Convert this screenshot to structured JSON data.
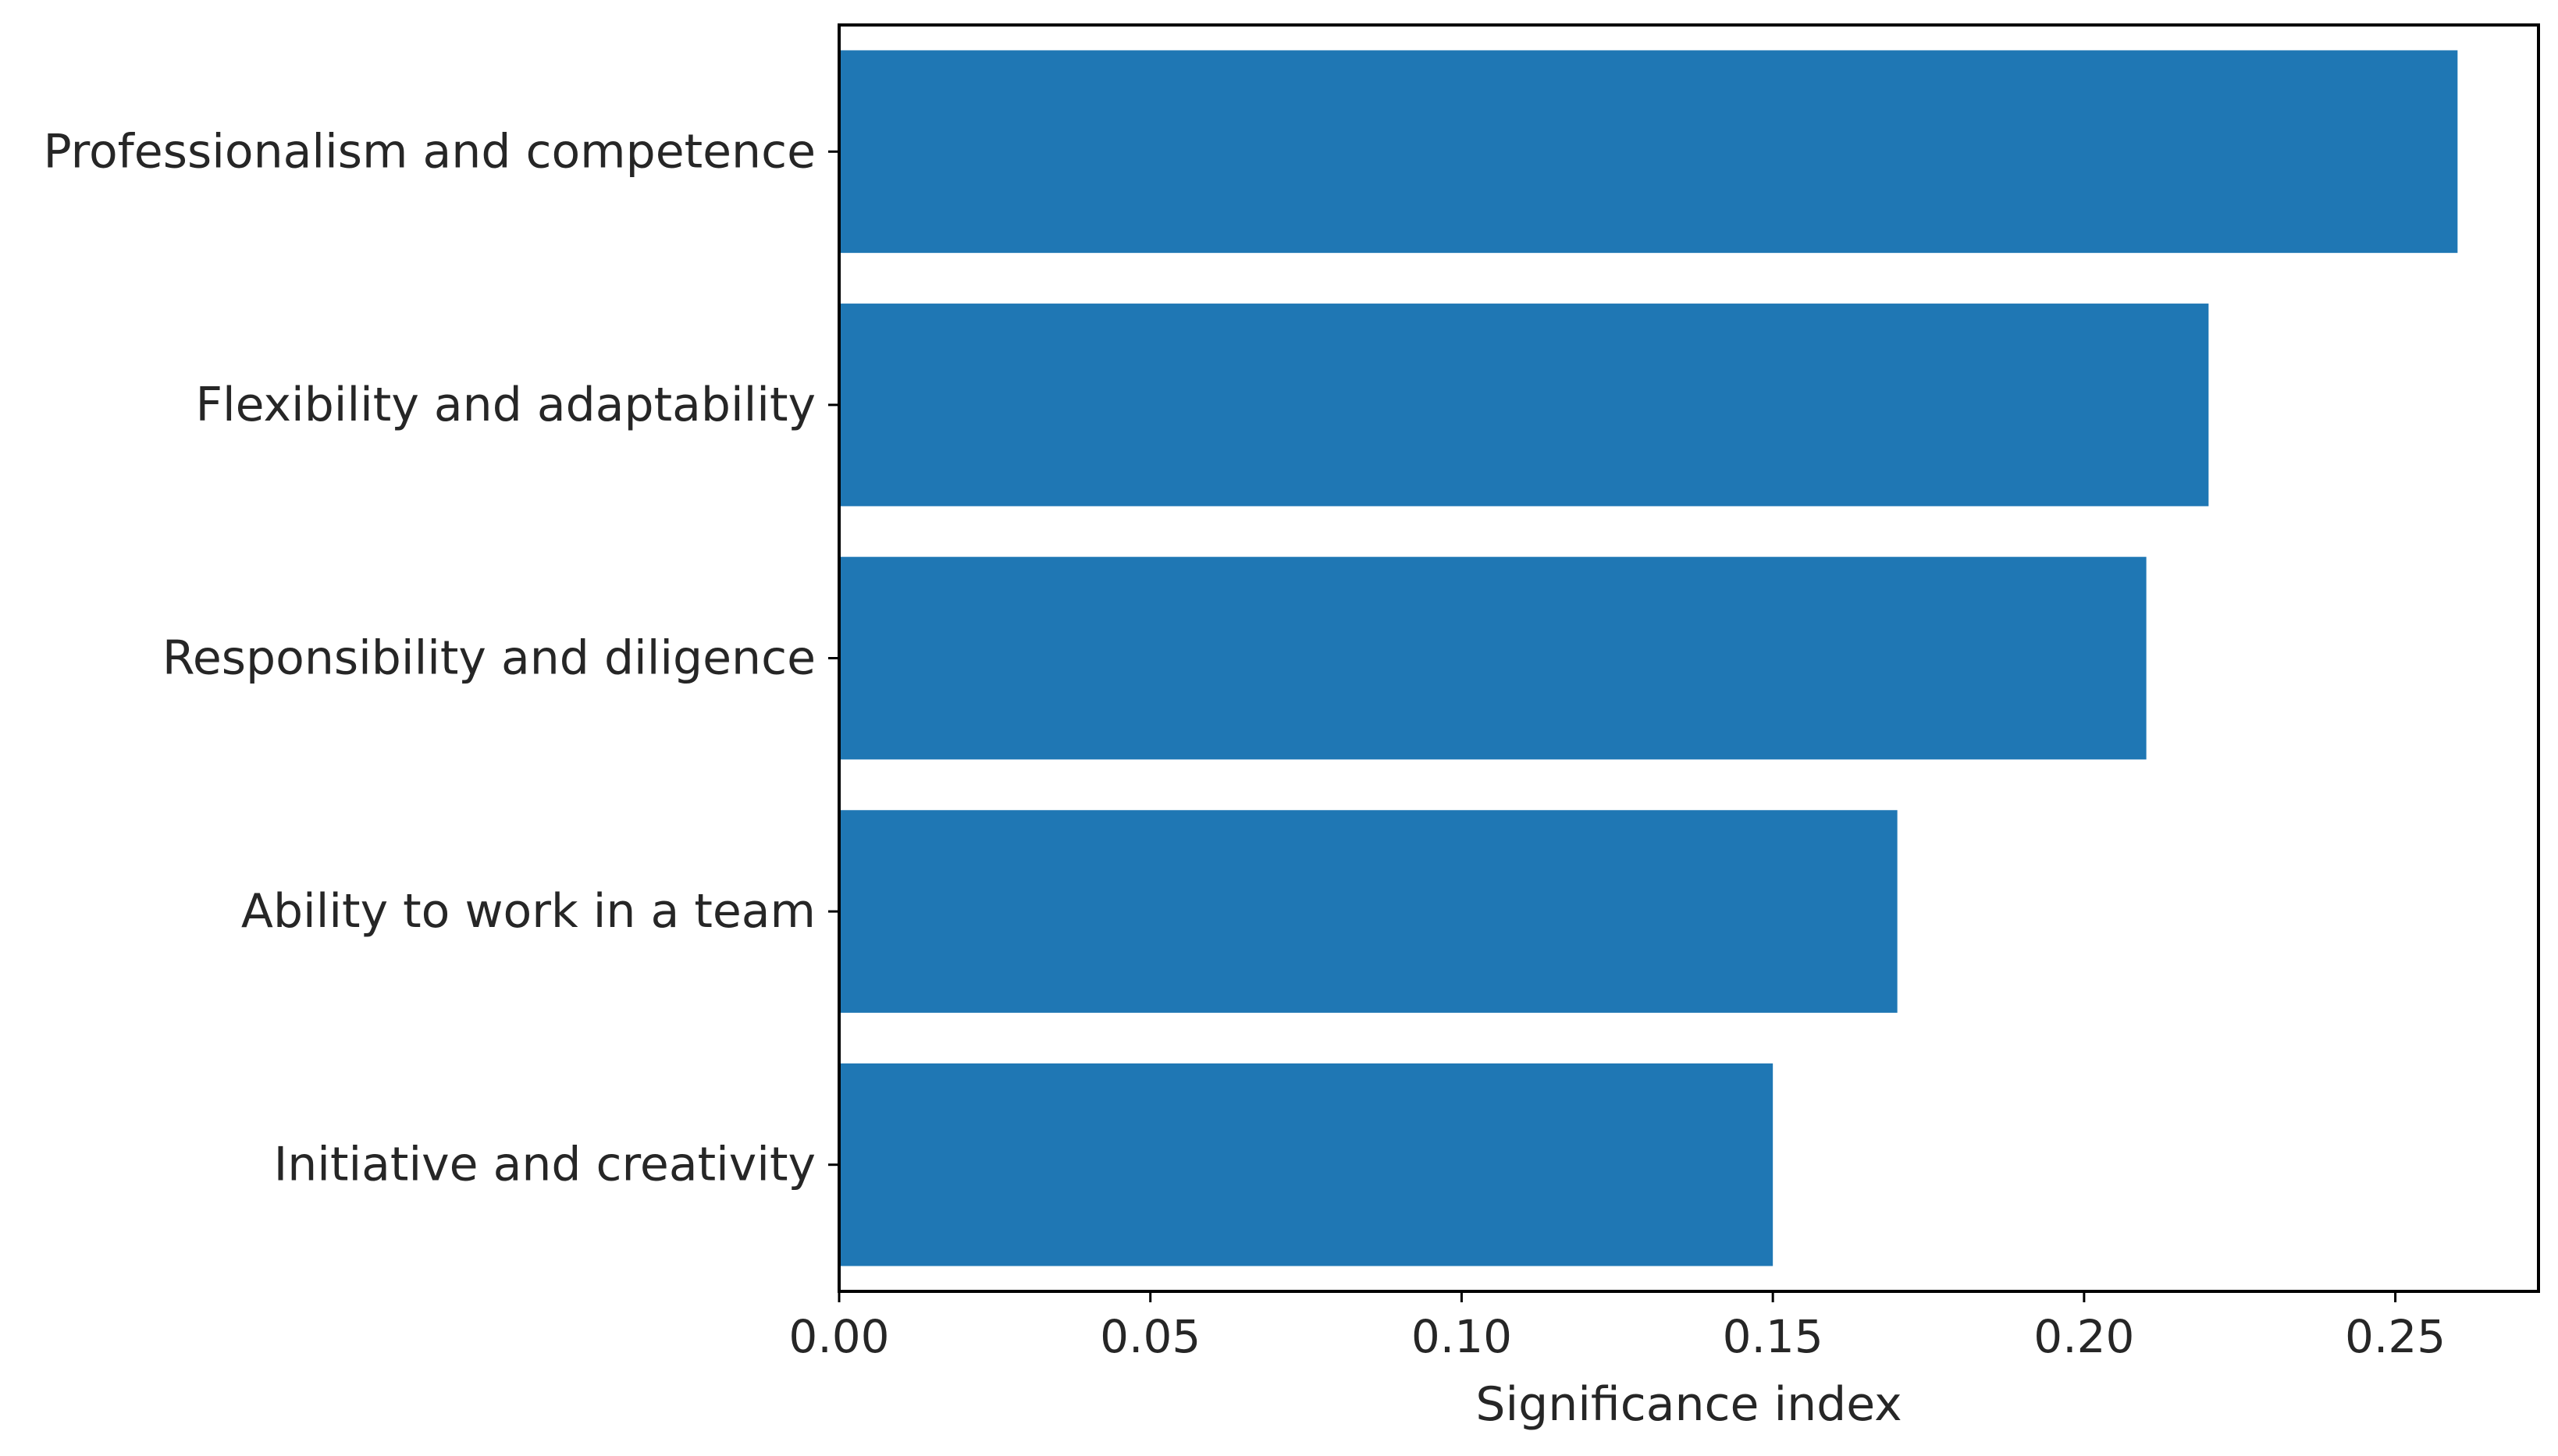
{
  "chart_data": {
    "type": "bar",
    "orientation": "horizontal",
    "categories": [
      "Professionalism and competence",
      "Flexibility and adaptability",
      "Responsibility and diligence",
      "Ability to work in a team",
      "Initiative and creativity"
    ],
    "values": [
      0.26,
      0.22,
      0.21,
      0.17,
      0.15
    ],
    "title": "",
    "xlabel": "Significance index",
    "ylabel": "",
    "xlim": [
      0,
      0.273
    ],
    "xticks": [
      "0.00",
      "0.05",
      "0.10",
      "0.15",
      "0.20",
      "0.25"
    ],
    "grid": false,
    "legend": "none",
    "bar_color": "#1f77b4"
  }
}
